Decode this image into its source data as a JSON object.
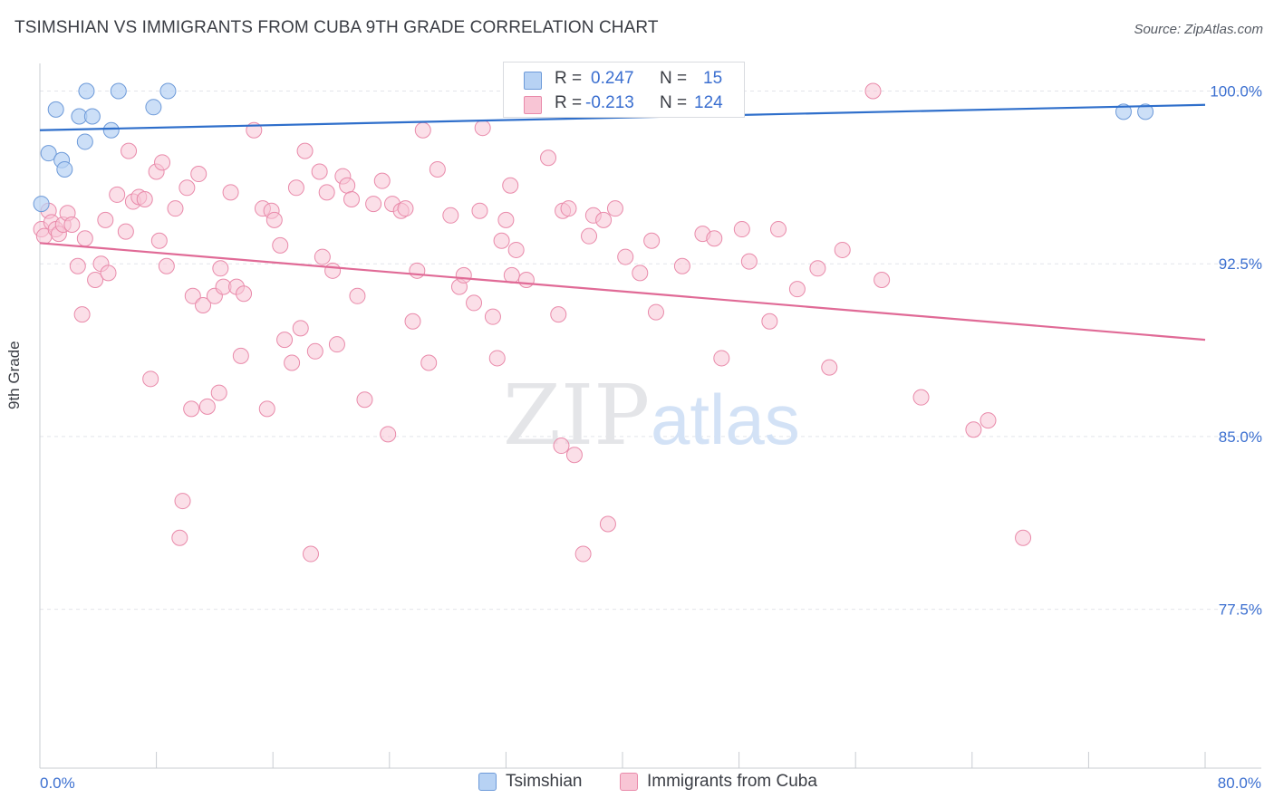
{
  "title": "TSIMSHIAN VS IMMIGRANTS FROM CUBA 9TH GRADE CORRELATION CHART",
  "source": "Source: ZipAtlas.com",
  "watermark": {
    "part1": "ZIP",
    "part2": "atlas"
  },
  "colors": {
    "tsimshian_fill": "#b7d2f4",
    "tsimshian_stroke": "#6d9ad9",
    "tsimshian_line": "#2f6fcb",
    "cuba_fill": "#f8c5d5",
    "cuba_stroke": "#e98aaa",
    "cuba_line": "#e06a96",
    "axis_value": "#3b6fd0",
    "grid": "#e3e5ea"
  },
  "stats": {
    "r_label": "R =",
    "n_label": "N =",
    "tsimshian": {
      "r": "0.247",
      "n": "15"
    },
    "cuba": {
      "r": "-0.213",
      "n": "124"
    }
  },
  "legend": {
    "tsimshian": "Tsimshian",
    "cuba": "Immigrants from Cuba"
  },
  "chart_data": {
    "type": "scatter",
    "xlabel": "",
    "ylabel": "9th Grade",
    "xlim": [
      0,
      80
    ],
    "ylim": [
      70.6,
      101.2
    ],
    "x_tick_labels": [
      "0.0%",
      "80.0%"
    ],
    "y_ticks": [
      100.0,
      92.5,
      85.0,
      77.5
    ],
    "y_tick_labels": [
      "100.0%",
      "92.5%",
      "85.0%",
      "77.5%"
    ],
    "grid": "horizontal dashed",
    "legend_position": "bottom-center",
    "series": [
      {
        "name": "Tsimshian",
        "trend": {
          "x": [
            0,
            80
          ],
          "y": [
            98.3,
            99.4
          ]
        },
        "points": [
          [
            0.1,
            95.1
          ],
          [
            0.6,
            97.3
          ],
          [
            1.1,
            99.2
          ],
          [
            1.5,
            97.0
          ],
          [
            1.7,
            96.6
          ],
          [
            2.7,
            98.9
          ],
          [
            3.1,
            97.8
          ],
          [
            3.2,
            100.0
          ],
          [
            3.6,
            98.9
          ],
          [
            4.9,
            98.3
          ],
          [
            5.4,
            100.0
          ],
          [
            7.8,
            99.3
          ],
          [
            8.8,
            100.0
          ],
          [
            74.4,
            99.1
          ],
          [
            75.9,
            99.1
          ]
        ]
      },
      {
        "name": "Immigrants from Cuba",
        "trend": {
          "x": [
            0,
            80
          ],
          "y": [
            93.4,
            89.2
          ]
        },
        "points": [
          [
            0.1,
            94.0
          ],
          [
            0.3,
            93.7
          ],
          [
            0.6,
            94.8
          ],
          [
            0.8,
            94.3
          ],
          [
            1.1,
            94.0
          ],
          [
            1.3,
            93.8
          ],
          [
            1.6,
            94.2
          ],
          [
            1.9,
            94.7
          ],
          [
            2.2,
            94.2
          ],
          [
            2.6,
            92.4
          ],
          [
            2.9,
            90.3
          ],
          [
            3.1,
            93.6
          ],
          [
            3.8,
            91.8
          ],
          [
            4.2,
            92.5
          ],
          [
            4.5,
            94.4
          ],
          [
            4.7,
            92.1
          ],
          [
            5.3,
            95.5
          ],
          [
            5.9,
            93.9
          ],
          [
            6.1,
            97.4
          ],
          [
            6.4,
            95.2
          ],
          [
            6.8,
            95.4
          ],
          [
            7.2,
            95.3
          ],
          [
            7.6,
            87.5
          ],
          [
            8.0,
            96.5
          ],
          [
            8.2,
            93.5
          ],
          [
            8.4,
            96.9
          ],
          [
            8.7,
            92.4
          ],
          [
            9.3,
            94.9
          ],
          [
            9.6,
            80.6
          ],
          [
            9.8,
            82.2
          ],
          [
            10.1,
            95.8
          ],
          [
            10.4,
            86.2
          ],
          [
            10.5,
            91.1
          ],
          [
            10.9,
            96.4
          ],
          [
            11.2,
            90.7
          ],
          [
            11.5,
            86.3
          ],
          [
            12.0,
            91.1
          ],
          [
            12.3,
            86.9
          ],
          [
            12.4,
            92.3
          ],
          [
            12.6,
            91.5
          ],
          [
            13.1,
            95.6
          ],
          [
            13.5,
            91.5
          ],
          [
            13.8,
            88.5
          ],
          [
            14.0,
            91.2
          ],
          [
            14.7,
            98.3
          ],
          [
            15.3,
            94.9
          ],
          [
            15.6,
            86.2
          ],
          [
            15.9,
            94.8
          ],
          [
            16.1,
            94.4
          ],
          [
            16.5,
            93.3
          ],
          [
            16.8,
            89.2
          ],
          [
            17.3,
            88.2
          ],
          [
            17.6,
            95.8
          ],
          [
            17.9,
            89.7
          ],
          [
            18.2,
            97.4
          ],
          [
            18.6,
            79.9
          ],
          [
            18.9,
            88.7
          ],
          [
            19.2,
            96.5
          ],
          [
            19.4,
            92.8
          ],
          [
            19.7,
            95.6
          ],
          [
            20.1,
            92.2
          ],
          [
            20.4,
            89.0
          ],
          [
            20.8,
            96.3
          ],
          [
            21.1,
            95.9
          ],
          [
            21.4,
            95.3
          ],
          [
            21.8,
            91.1
          ],
          [
            22.3,
            86.6
          ],
          [
            22.9,
            95.1
          ],
          [
            23.5,
            96.1
          ],
          [
            23.9,
            85.1
          ],
          [
            24.2,
            95.1
          ],
          [
            24.8,
            94.8
          ],
          [
            25.1,
            94.9
          ],
          [
            25.6,
            90.0
          ],
          [
            25.9,
            92.2
          ],
          [
            26.3,
            98.3
          ],
          [
            26.7,
            88.2
          ],
          [
            27.3,
            96.6
          ],
          [
            28.2,
            94.6
          ],
          [
            28.8,
            91.5
          ],
          [
            29.1,
            92.0
          ],
          [
            29.8,
            90.8
          ],
          [
            30.2,
            94.8
          ],
          [
            30.4,
            98.4
          ],
          [
            31.1,
            90.2
          ],
          [
            31.4,
            88.4
          ],
          [
            31.7,
            93.5
          ],
          [
            32.0,
            94.4
          ],
          [
            32.3,
            95.9
          ],
          [
            32.4,
            92.0
          ],
          [
            32.7,
            93.1
          ],
          [
            33.4,
            91.8
          ],
          [
            34.0,
            100.0
          ],
          [
            34.9,
            97.1
          ],
          [
            35.6,
            90.3
          ],
          [
            35.8,
            84.6
          ],
          [
            35.9,
            94.8
          ],
          [
            36.3,
            94.9
          ],
          [
            36.7,
            84.2
          ],
          [
            37.3,
            79.9
          ],
          [
            37.7,
            93.7
          ],
          [
            38.0,
            94.6
          ],
          [
            38.7,
            94.4
          ],
          [
            39.0,
            81.2
          ],
          [
            39.5,
            94.9
          ],
          [
            40.2,
            92.8
          ],
          [
            41.2,
            92.1
          ],
          [
            42.0,
            93.5
          ],
          [
            42.3,
            90.4
          ],
          [
            44.1,
            92.4
          ],
          [
            45.5,
            93.8
          ],
          [
            46.3,
            93.6
          ],
          [
            46.8,
            88.4
          ],
          [
            48.2,
            94.0
          ],
          [
            48.7,
            92.6
          ],
          [
            50.1,
            90.0
          ],
          [
            50.7,
            94.0
          ],
          [
            52.0,
            91.4
          ],
          [
            53.4,
            92.3
          ],
          [
            54.2,
            88.0
          ],
          [
            55.1,
            93.1
          ],
          [
            57.2,
            100.0
          ],
          [
            57.8,
            91.8
          ],
          [
            60.5,
            86.7
          ],
          [
            64.1,
            85.3
          ],
          [
            65.1,
            85.7
          ],
          [
            67.5,
            80.6
          ]
        ]
      }
    ]
  }
}
